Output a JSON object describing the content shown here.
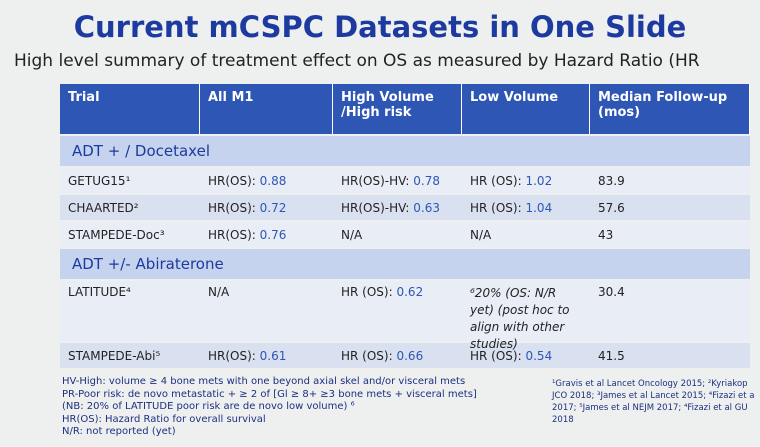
{
  "header": {
    "title": "Current mCSPC Datasets in One Slide",
    "subtitle": "High level summary of treatment effect on OS as measured by Hazard Ratio (HR"
  },
  "table": {
    "columns": [
      "Trial",
      "All M1",
      "High Volume /High risk",
      "Low Volume",
      "Median Follow-up (mos)"
    ],
    "sections": [
      {
        "title": "ADT + / Docetaxel",
        "rows": [
          [
            "GETUG15¹",
            {
              "label": "HR(OS):",
              "value": "0.88"
            },
            {
              "label": "HR(OS)-HV:",
              "value": "0.78"
            },
            {
              "label": "HR (OS):",
              "value": "1.02"
            },
            "83.9"
          ],
          [
            "CHAARTED²",
            {
              "label": "HR(OS):",
              "value": "0.72"
            },
            {
              "label": "HR(OS)-HV:",
              "value": "0.63"
            },
            {
              "label": "HR (OS):",
              "value": "1.04"
            },
            "57.6"
          ],
          [
            "STAMPEDE-Doc³",
            {
              "label": "HR(OS):",
              "value": "0.76"
            },
            "N/A",
            "N/A",
            "43"
          ]
        ]
      },
      {
        "title": "ADT +/- Abiraterone",
        "rows": [
          [
            "LATITUDE⁴",
            "N/A",
            {
              "label": "HR (OS):",
              "value": "0.62"
            },
            "⁶20% (OS: N/R yet) (post hoc to align with other studies)",
            "30.4"
          ],
          [
            "STAMPEDE-Abi⁵",
            {
              "label": "HR(OS):",
              "value": "0.61"
            },
            {
              "label": "HR (OS):",
              "value": "0.66"
            },
            {
              "label": "HR (OS):",
              "value": "0.54"
            },
            "41.5"
          ]
        ]
      }
    ]
  },
  "footnotes": {
    "left": [
      "HV-High: volume ≥ 4 bone mets with one beyond axial skel and/or visceral mets",
      "PR-Poor risk: de novo metastatic + ≥ 2 of [Gl ≥ 8+ ≥3 bone mets + visceral mets]",
      "(NB: 20% of LATITUDE poor risk are de novo low volume) ⁶",
      "HR(OS): Hazard Ratio for overall survival",
      "N/R: not reported (yet)"
    ],
    "right": [
      "¹Gravis et al Lancet Oncology 2015; ²Kyriakop",
      "JCO 2018; ³James et al Lancet 2015; ⁴Fizazi et a",
      "2017; ⁵James et al NEJM 2017; ⁴Fizazi et al GU",
      "2018"
    ]
  }
}
